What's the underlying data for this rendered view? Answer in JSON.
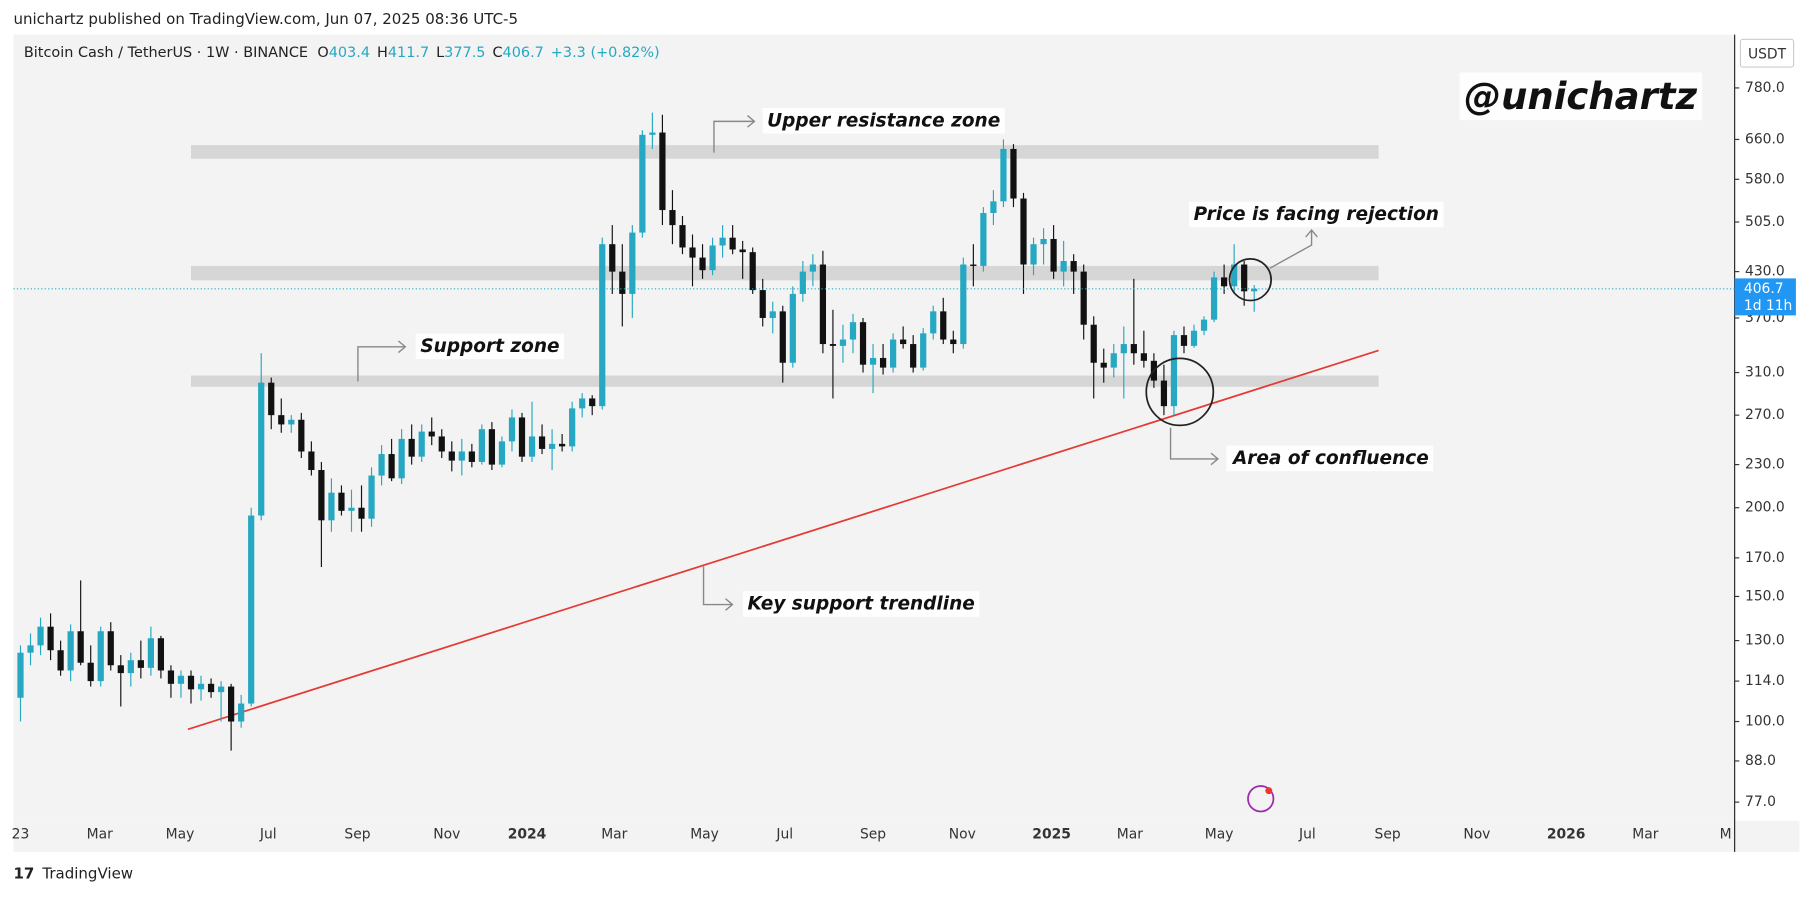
{
  "header": "unichartz published on TradingView.com, Jun 07, 2025 08:36 UTC-5",
  "footer": "TradingView",
  "chart_data": {
    "type": "candlestick",
    "symbol": "Bitcoin Cash / TetherUS · 1W · BINANCE",
    "legend_labels": [
      "O",
      "H",
      "L",
      "C"
    ],
    "change": "+3.3 (+0.82%)",
    "currency": "USDT",
    "countdown": "1d 11h",
    "watermark": "@unichartz",
    "up_color": "#26a8c2",
    "down_color": "#111111",
    "log_scale": true,
    "open": [
      108,
      125,
      128,
      136,
      126,
      118,
      134,
      121,
      114,
      134,
      120,
      117,
      122,
      119,
      131,
      118,
      113,
      116,
      111,
      113,
      110,
      112,
      100,
      106,
      195,
      300,
      270,
      262,
      266,
      240,
      226,
      192,
      210,
      198,
      200,
      193,
      222,
      238,
      220,
      250,
      236,
      256,
      252,
      240,
      233,
      240,
      232,
      258,
      230,
      248,
      268,
      236,
      252,
      242,
      246,
      244,
      276,
      285,
      278,
      470,
      430,
      400,
      488,
      670,
      675,
      525,
      500,
      465,
      450,
      432,
      468,
      480,
      462,
      458,
      405,
      370,
      378,
      320,
      400,
      430,
      440,
      340,
      338,
      345,
      365,
      318,
      325,
      315,
      345,
      340,
      315,
      352,
      378,
      345,
      340,
      440,
      438,
      520,
      540,
      640,
      545,
      440,
      470,
      478,
      430,
      445,
      430,
      362,
      320,
      315,
      330,
      340,
      330,
      322,
      302,
      278,
      350,
      338,
      355,
      368,
      422,
      410,
      440,
      403.4
    ],
    "high": [
      128,
      133,
      140,
      142,
      130,
      137,
      158,
      128,
      136,
      138,
      124,
      125,
      130,
      136,
      132,
      120,
      118,
      118,
      116,
      115,
      114,
      113,
      109,
      200,
      330,
      305,
      285,
      270,
      272,
      248,
      232,
      220,
      215,
      212,
      215,
      228,
      245,
      250,
      258,
      262,
      262,
      268,
      258,
      248,
      250,
      246,
      262,
      264,
      252,
      275,
      272,
      282,
      262,
      258,
      254,
      282,
      290,
      288,
      480,
      500,
      470,
      500,
      680,
      720,
      715,
      560,
      515,
      485,
      470,
      480,
      500,
      500,
      475,
      465,
      420,
      390,
      385,
      410,
      445,
      455,
      460,
      380,
      362,
      375,
      370,
      340,
      340,
      352,
      360,
      350,
      358,
      385,
      395,
      355,
      450,
      470,
      530,
      560,
      660,
      650,
      555,
      480,
      495,
      500,
      475,
      455,
      440,
      372,
      335,
      340,
      360,
      420,
      355,
      330,
      318,
      355,
      360,
      362,
      372,
      430,
      440,
      470,
      445,
      411.7
    ],
    "low": [
      100,
      120,
      124,
      122,
      116,
      114,
      120,
      112,
      112,
      118,
      105,
      112,
      115,
      116,
      115,
      108,
      108,
      106,
      107,
      108,
      100,
      91,
      98,
      105,
      192,
      258,
      255,
      255,
      235,
      222,
      165,
      185,
      195,
      185,
      185,
      188,
      215,
      218,
      216,
      230,
      232,
      245,
      235,
      225,
      222,
      228,
      230,
      226,
      228,
      240,
      232,
      232,
      238,
      226,
      240,
      240,
      268,
      270,
      275,
      400,
      360,
      370,
      480,
      640,
      500,
      470,
      455,
      410,
      420,
      425,
      450,
      455,
      420,
      400,
      360,
      352,
      300,
      315,
      390,
      410,
      330,
      285,
      320,
      330,
      310,
      290,
      308,
      310,
      335,
      310,
      312,
      345,
      340,
      330,
      335,
      410,
      430,
      500,
      530,
      530,
      400,
      425,
      440,
      420,
      410,
      400,
      345,
      285,
      300,
      305,
      285,
      318,
      315,
      295,
      270,
      270,
      330,
      336,
      350,
      365,
      400,
      400,
      385,
      377.5
    ],
    "close": [
      125,
      128,
      136,
      126,
      118,
      134,
      121,
      114,
      134,
      120,
      117,
      122,
      119,
      131,
      118,
      113,
      116,
      111,
      113,
      110,
      112,
      100,
      106,
      195,
      300,
      270,
      262,
      266,
      240,
      226,
      192,
      210,
      198,
      200,
      193,
      222,
      238,
      220,
      250,
      236,
      256,
      252,
      240,
      233,
      240,
      232,
      258,
      230,
      248,
      268,
      236,
      252,
      242,
      246,
      244,
      276,
      285,
      278,
      470,
      430,
      400,
      488,
      670,
      675,
      525,
      500,
      465,
      450,
      432,
      468,
      480,
      462,
      458,
      405,
      370,
      378,
      320,
      400,
      430,
      440,
      340,
      338,
      345,
      365,
      318,
      325,
      315,
      345,
      340,
      315,
      352,
      378,
      345,
      340,
      440,
      438,
      520,
      540,
      640,
      545,
      440,
      470,
      478,
      430,
      445,
      430,
      362,
      320,
      315,
      330,
      340,
      330,
      322,
      302,
      278,
      350,
      338,
      355,
      368,
      422,
      410,
      440,
      403.4,
      406.7
    ],
    "xlim": [
      -0.7,
      170.9
    ],
    "xticks": [
      {
        "value": 0,
        "label": "23"
      },
      {
        "value": 7.9,
        "label": "Mar"
      },
      {
        "value": 15.9,
        "label": "May"
      },
      {
        "value": 24.7,
        "label": "Jul"
      },
      {
        "value": 33.6,
        "label": "Sep"
      },
      {
        "value": 42.5,
        "label": "Nov"
      },
      {
        "value": 50.5,
        "label": "2024"
      },
      {
        "value": 59.2,
        "label": "Mar"
      },
      {
        "value": 68.2,
        "label": "May"
      },
      {
        "value": 76.2,
        "label": "Jul"
      },
      {
        "value": 85.0,
        "label": "Sep"
      },
      {
        "value": 93.9,
        "label": "Nov"
      },
      {
        "value": 102.8,
        "label": "2025"
      },
      {
        "value": 110.6,
        "label": "Mar"
      },
      {
        "value": 119.5,
        "label": "May"
      },
      {
        "value": 128.3,
        "label": "Jul"
      },
      {
        "value": 136.3,
        "label": "Sep"
      },
      {
        "value": 145.2,
        "label": "Nov"
      },
      {
        "value": 154.1,
        "label": "2026"
      },
      {
        "value": 162.0,
        "label": "Mar"
      },
      {
        "value": 170.0,
        "label": "M"
      }
    ],
    "ylim": [
      72.5,
      927
    ],
    "yticks": [
      {
        "value": 780,
        "label": "780.0"
      },
      {
        "value": 660,
        "label": "660.0"
      },
      {
        "value": 580,
        "label": "580.0"
      },
      {
        "value": 505,
        "label": "505.0"
      },
      {
        "value": 430,
        "label": "430.0"
      },
      {
        "value": 370,
        "label": "370.0"
      },
      {
        "value": 310,
        "label": "310.0"
      },
      {
        "value": 270,
        "label": "270.0"
      },
      {
        "value": 230,
        "label": "230.0"
      },
      {
        "value": 200,
        "label": "200.0"
      },
      {
        "value": 170,
        "label": "170.0"
      },
      {
        "value": 150,
        "label": "150.0"
      },
      {
        "value": 130,
        "label": "130.0"
      },
      {
        "value": 114,
        "label": "114.0"
      },
      {
        "value": 100,
        "label": "100.0"
      },
      {
        "value": 88,
        "label": "88.0"
      },
      {
        "value": 77,
        "label": "77.0"
      }
    ],
    "zones": [
      {
        "x": [
          17,
          135.4
        ],
        "y": [
          620,
          648
        ]
      },
      {
        "x": [
          17,
          135.4
        ],
        "y": [
          418,
          438
        ]
      },
      {
        "x": [
          17,
          135.4
        ],
        "y": [
          296,
          307
        ]
      }
    ],
    "zone_color": "#d6d6d6",
    "trendline": {
      "x": [
        16.7,
        135.4
      ],
      "y": [
        97.5,
        333
      ],
      "color": "#e53935"
    },
    "annotations": [
      "Upper resistance zone",
      "Support zone",
      "Price is facing rejection",
      "Area of confluence",
      "Key support trendline"
    ]
  }
}
